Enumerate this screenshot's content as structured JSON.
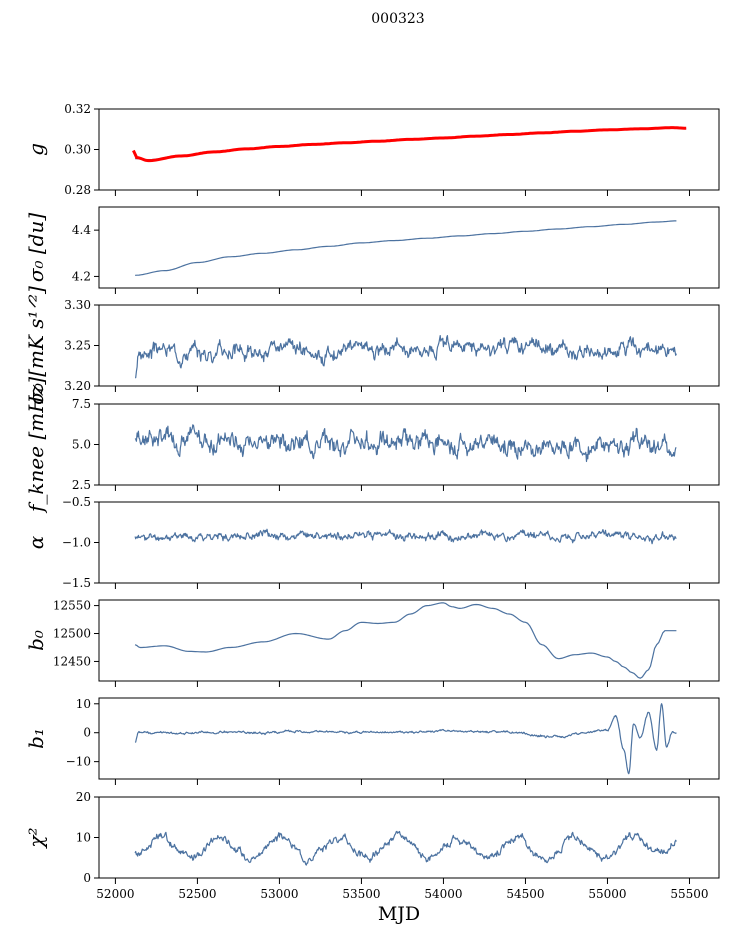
{
  "figure_title": "000323",
  "chart_data": [
    {
      "type": "line",
      "ylabel": "g",
      "ylabel_display": "g",
      "ylim": [
        0.28,
        0.32
      ],
      "yticks": [
        0.28,
        0.3,
        0.32
      ],
      "ytick_labels": [
        "0.28",
        "0.30",
        "0.32"
      ],
      "xlim": [
        51900,
        55680
      ],
      "series": [
        {
          "name": "gain",
          "color": "#4c72a0",
          "x": [
            52120,
            52200,
            52400,
            52600,
            52800,
            53000,
            53200,
            53400,
            53600,
            53800,
            54000,
            54200,
            54400,
            54600,
            54800,
            55000,
            55200,
            55400,
            55480
          ],
          "y": [
            0.2955,
            0.295,
            0.297,
            0.299,
            0.3005,
            0.3015,
            0.3025,
            0.3032,
            0.304,
            0.3048,
            0.3055,
            0.3065,
            0.3072,
            0.308,
            0.309,
            0.3095,
            0.31,
            0.3105,
            0.3102
          ]
        },
        {
          "name": "fit",
          "color": "#ff0000",
          "x": [
            52110,
            52130,
            52200,
            52400,
            52600,
            52800,
            53000,
            53200,
            53400,
            53600,
            53800,
            54000,
            54200,
            54400,
            54600,
            54800,
            55000,
            55200,
            55400,
            55480
          ],
          "y": [
            0.2995,
            0.296,
            0.2945,
            0.2968,
            0.2988,
            0.3003,
            0.3015,
            0.3025,
            0.3033,
            0.3041,
            0.305,
            0.3057,
            0.3066,
            0.3074,
            0.3082,
            0.309,
            0.3097,
            0.3102,
            0.3108,
            0.3105
          ]
        }
      ]
    },
    {
      "type": "line",
      "ylabel": "σ0 [du]",
      "ylabel_display": "σ₀ [du]",
      "ylim": [
        4.15,
        4.5
      ],
      "yticks": [
        4.2,
        4.4
      ],
      "ytick_labels": [
        "4.2",
        "4.4"
      ],
      "xlim": [
        51900,
        55680
      ],
      "series": [
        {
          "name": "sigma0",
          "color": "#4c72a0",
          "x": [
            52120,
            52300,
            52500,
            52700,
            52900,
            53100,
            53300,
            53500,
            53700,
            53900,
            54100,
            54300,
            54500,
            54700,
            54900,
            55100,
            55300,
            55420
          ],
          "y": [
            4.205,
            4.225,
            4.26,
            4.285,
            4.3,
            4.315,
            4.33,
            4.345,
            4.355,
            4.365,
            4.375,
            4.385,
            4.395,
            4.405,
            4.415,
            4.425,
            4.435,
            4.44
          ]
        }
      ]
    },
    {
      "type": "line",
      "ylabel": "σ0 [mK s^1/2]",
      "ylabel_display": "σ₀ [mK s¹ᐟ²]",
      "ylim": [
        3.2,
        3.3
      ],
      "yticks": [
        3.2,
        3.25,
        3.3
      ],
      "ytick_labels": [
        "3.20",
        "3.25",
        "3.30"
      ],
      "xlim": [
        51900,
        55680
      ],
      "noise": {
        "amp": 0.012,
        "seed": 3
      },
      "series": [
        {
          "name": "sigma0_mK",
          "color": "#4c72a0",
          "x": [
            52120,
            52140,
            52300,
            52500,
            52700,
            52900,
            53100,
            53300,
            53500,
            53700,
            53900,
            54100,
            54300,
            54500,
            54700,
            54900,
            55100,
            55300,
            55420
          ],
          "y": [
            3.21,
            3.24,
            3.245,
            3.24,
            3.245,
            3.24,
            3.245,
            3.24,
            3.25,
            3.245,
            3.25,
            3.25,
            3.245,
            3.25,
            3.245,
            3.24,
            3.245,
            3.24,
            3.24
          ]
        }
      ]
    },
    {
      "type": "line",
      "ylabel": "f_knee [mHz]",
      "ylabel_display": "f_knee [mHz]",
      "ylim": [
        2.5,
        7.5
      ],
      "yticks": [
        2.5,
        5.0,
        7.5
      ],
      "ytick_labels": [
        "2.5",
        "5.0",
        "7.5"
      ],
      "xlim": [
        51900,
        55680
      ],
      "noise": {
        "amp": 0.75,
        "seed": 7
      },
      "series": [
        {
          "name": "fknee",
          "color": "#4c72a0",
          "x": [
            52120,
            52300,
            52500,
            52700,
            52900,
            53100,
            53300,
            53500,
            53700,
            53900,
            54100,
            54300,
            54500,
            54700,
            54900,
            55100,
            55300,
            55420
          ],
          "y": [
            5.5,
            5.4,
            5.3,
            5.2,
            5.3,
            5.2,
            5.1,
            5.2,
            5.1,
            5.2,
            5.1,
            5.1,
            5.0,
            5.0,
            5.0,
            5.0,
            4.9,
            4.8
          ]
        }
      ]
    },
    {
      "type": "line",
      "ylabel": "α",
      "ylabel_display": "α",
      "ylim": [
        -1.5,
        -0.5
      ],
      "yticks": [
        -1.5,
        -1.0,
        -0.5
      ],
      "ytick_labels": [
        "−1.5",
        "−1.0",
        "−0.5"
      ],
      "xlim": [
        51900,
        55680
      ],
      "noise": {
        "amp": 0.06,
        "seed": 11
      },
      "series": [
        {
          "name": "alpha",
          "color": "#4c72a0",
          "x": [
            52120,
            52300,
            52500,
            52700,
            52900,
            53100,
            53300,
            53500,
            53700,
            53900,
            54100,
            54300,
            54500,
            54700,
            54900,
            55100,
            55300,
            55420
          ],
          "y": [
            -0.94,
            -0.93,
            -0.92,
            -0.92,
            -0.91,
            -0.92,
            -0.91,
            -0.91,
            -0.91,
            -0.92,
            -0.92,
            -0.91,
            -0.91,
            -0.92,
            -0.92,
            -0.92,
            -0.93,
            -0.95
          ]
        }
      ]
    },
    {
      "type": "line",
      "ylabel": "b0",
      "ylabel_display": "b₀",
      "ylim": [
        12415,
        12560
      ],
      "yticks": [
        12450,
        12500,
        12550
      ],
      "ytick_labels": [
        "12450",
        "12500",
        "12550"
      ],
      "xlim": [
        51900,
        55680
      ],
      "series": [
        {
          "name": "b0",
          "color": "#4c72a0",
          "x": [
            52120,
            52150,
            52300,
            52450,
            52550,
            52700,
            52900,
            53100,
            53300,
            53400,
            53500,
            53600,
            53700,
            53800,
            53900,
            54000,
            54050,
            54100,
            54200,
            54300,
            54400,
            54500,
            54600,
            54700,
            54800,
            54900,
            55000,
            55050,
            55100,
            55150,
            55200,
            55250,
            55300,
            55350,
            55420
          ],
          "y": [
            12480,
            12475,
            12478,
            12468,
            12467,
            12475,
            12485,
            12500,
            12490,
            12505,
            12520,
            12518,
            12520,
            12535,
            12550,
            12555,
            12548,
            12545,
            12552,
            12545,
            12535,
            12520,
            12480,
            12455,
            12462,
            12465,
            12458,
            12450,
            12440,
            12430,
            12420,
            12435,
            12480,
            12505,
            12505
          ]
        }
      ]
    },
    {
      "type": "line",
      "ylabel": "b1",
      "ylabel_display": "b₁",
      "ylim": [
        -16,
        12
      ],
      "yticks": [
        -10,
        0,
        10
      ],
      "ytick_labels": [
        "−10",
        "0",
        "10"
      ],
      "xlim": [
        51900,
        55680
      ],
      "noise": {
        "amp": 0.5,
        "seed": 13
      },
      "series": [
        {
          "name": "b1",
          "color": "#4c72a0",
          "x": [
            52120,
            52140,
            52300,
            52600,
            52900,
            53200,
            53500,
            53800,
            54100,
            54400,
            54700,
            54900,
            55000,
            55050,
            55100,
            55130,
            55160,
            55200,
            55250,
            55300,
            55330,
            55360,
            55400,
            55420
          ],
          "y": [
            -3.5,
            0.2,
            0.0,
            0.1,
            0.0,
            0.3,
            0.0,
            0.2,
            0.5,
            0.0,
            -1.5,
            0.3,
            1.0,
            6.0,
            -6.0,
            -14.0,
            3.0,
            -2.0,
            7.0,
            -6.0,
            10.0,
            -5.0,
            0.5,
            0.0
          ]
        }
      ]
    },
    {
      "type": "line",
      "ylabel": "χ2",
      "ylabel_display": "χ²",
      "xlabel": "MJD",
      "ylim": [
        0,
        20
      ],
      "yticks": [
        0,
        10,
        20
      ],
      "ytick_labels": [
        "0",
        "10",
        "20"
      ],
      "xlim": [
        51900,
        55680
      ],
      "xticks": [
        52000,
        52500,
        53000,
        53500,
        54000,
        54500,
        55000,
        55500
      ],
      "xtick_labels": [
        "52000",
        "52500",
        "53000",
        "53500",
        "54000",
        "54500",
        "55000",
        "55500"
      ],
      "noise": {
        "amp": 1.2,
        "seed": 17
      },
      "series": [
        {
          "name": "chi2",
          "color": "#4c72a0",
          "x": [
            52120,
            52280,
            52460,
            52640,
            52820,
            53000,
            53180,
            53360,
            53540,
            53720,
            53900,
            54080,
            54260,
            54440,
            54620,
            54800,
            54980,
            55160,
            55340,
            55420
          ],
          "y": [
            6,
            10,
            5,
            10,
            5,
            10,
            5,
            10,
            5,
            10,
            5,
            10,
            5,
            10,
            5,
            10,
            5,
            10,
            6,
            9
          ]
        }
      ]
    }
  ]
}
